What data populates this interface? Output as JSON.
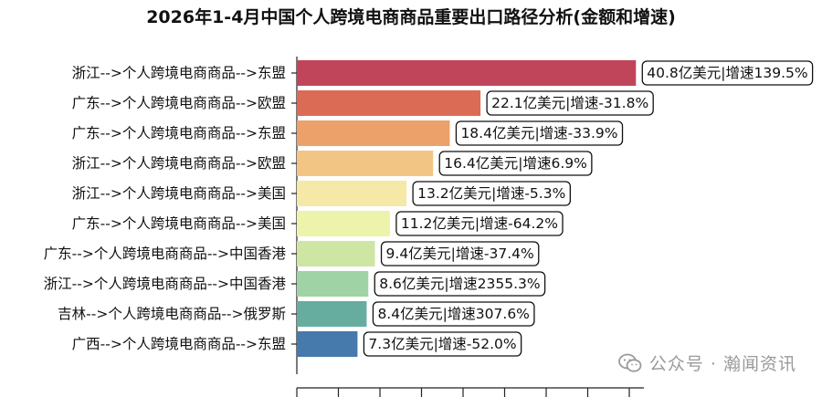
{
  "chart_data": {
    "type": "bar",
    "orientation": "horizontal",
    "title": "2026年1-4月中国个人跨境电商商品重要出口路径分析(金额和增速)",
    "categories": [
      "浙江-->个人跨境电商商品-->东盟",
      "广东-->个人跨境电商商品-->欧盟",
      "广东-->个人跨境电商商品-->东盟",
      "浙江-->个人跨境电商商品-->欧盟",
      "浙江-->个人跨境电商商品-->美国",
      "广东-->个人跨境电商商品-->美国",
      "广东-->个人跨境电商商品-->中国香港",
      "浙江-->个人跨境电商商品-->中国香港",
      "吉林-->个人跨境电商商品-->俄罗斯",
      "广西-->个人跨境电商商品-->东盟"
    ],
    "values": [
      40.8,
      22.1,
      18.4,
      16.4,
      13.2,
      11.2,
      9.4,
      8.6,
      8.4,
      7.3
    ],
    "labels": [
      "40.8亿美元|增速139.5%",
      "22.1亿美元|增速-31.8%",
      "18.4亿美元|增速-33.9%",
      "16.4亿美元|增速6.9%",
      "13.2亿美元|增速-5.3%",
      "11.2亿美元|增速-64.2%",
      "9.4亿美元|增速-37.4%",
      "8.6亿美元|增速2355.3%",
      "8.4亿美元|增速307.6%",
      "7.3亿美元|增速-52.0%"
    ],
    "colors": [
      "#c0455a",
      "#dc6b55",
      "#eca06a",
      "#f3c585",
      "#f6e8a6",
      "#eef3ab",
      "#cde6a3",
      "#9fd3a6",
      "#66ad9f",
      "#4679ac"
    ],
    "xlim": [
      0,
      45
    ],
    "grid": false,
    "legend": "none"
  },
  "watermark": {
    "text": "公众号 · 瀚闻资讯",
    "icon": "wechat-icon"
  }
}
